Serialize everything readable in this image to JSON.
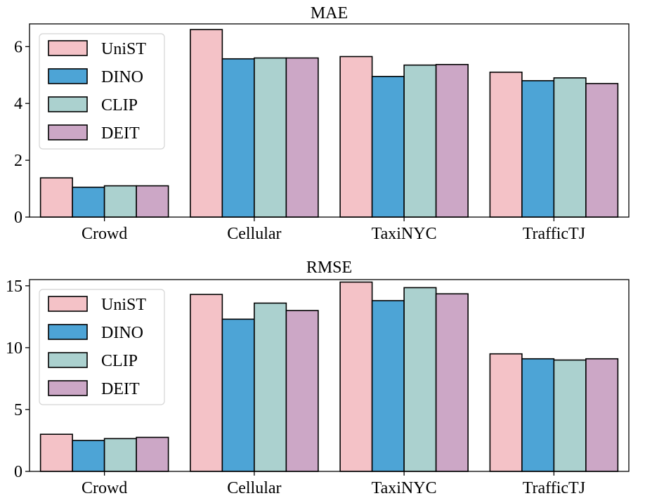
{
  "chart_data": [
    {
      "type": "bar",
      "title": "MAE",
      "categories": [
        "Crowd",
        "Cellular",
        "TaxiNYC",
        "TrafficTJ"
      ],
      "series": [
        {
          "name": "UniST",
          "color": "#f4c2c7",
          "values": [
            1.38,
            6.6,
            5.65,
            5.1
          ]
        },
        {
          "name": "DINO",
          "color": "#4da4d6",
          "values": [
            1.05,
            5.57,
            4.95,
            4.8
          ]
        },
        {
          "name": "CLIP",
          "color": "#abd1cf",
          "values": [
            1.1,
            5.6,
            5.35,
            4.9
          ]
        },
        {
          "name": "DEIT",
          "color": "#cca7c6",
          "values": [
            1.1,
            5.6,
            5.37,
            4.7
          ]
        }
      ],
      "yticks": [
        0,
        2,
        4,
        6
      ],
      "ytick_labels": [
        "0",
        "2",
        "4",
        "6"
      ],
      "ylim": [
        0,
        6.8
      ],
      "xlabel": "",
      "ylabel": "",
      "legend": "top-left"
    },
    {
      "type": "bar",
      "title": "RMSE",
      "categories": [
        "Crowd",
        "Cellular",
        "TaxiNYC",
        "TrafficTJ"
      ],
      "series": [
        {
          "name": "UniST",
          "color": "#f4c2c7",
          "values": [
            3.0,
            14.3,
            15.3,
            9.5
          ]
        },
        {
          "name": "DINO",
          "color": "#4da4d6",
          "values": [
            2.5,
            12.3,
            13.8,
            9.1
          ]
        },
        {
          "name": "CLIP",
          "color": "#abd1cf",
          "values": [
            2.65,
            13.6,
            14.85,
            9.0
          ]
        },
        {
          "name": "DEIT",
          "color": "#cca7c6",
          "values": [
            2.75,
            13.0,
            14.35,
            9.1
          ]
        }
      ],
      "yticks": [
        0,
        5,
        10,
        15
      ],
      "ytick_labels": [
        "0",
        "5",
        "10",
        "15"
      ],
      "ylim": [
        0,
        15.5
      ],
      "xlabel": "",
      "ylabel": "",
      "legend": "top-left"
    }
  ]
}
